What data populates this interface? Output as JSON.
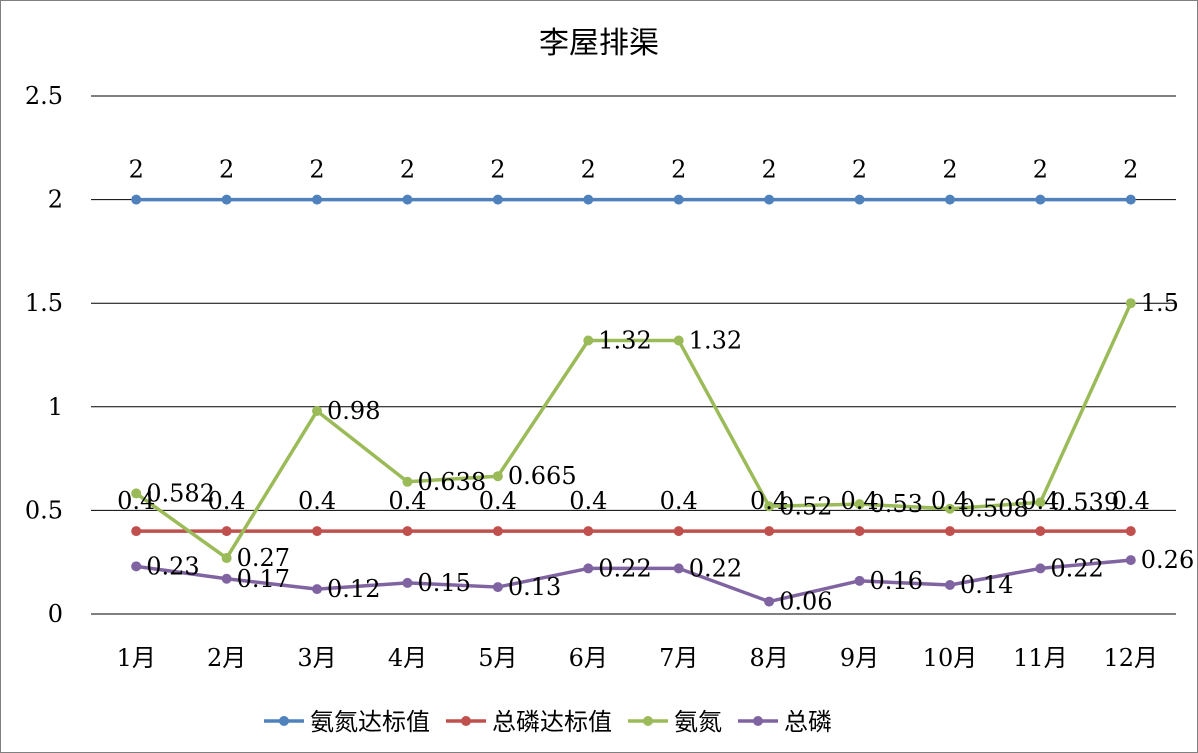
{
  "chart_data": {
    "type": "line",
    "title": "李屋排渠",
    "categories": [
      "1月",
      "2月",
      "3月",
      "4月",
      "5月",
      "6月",
      "7月",
      "8月",
      "9月",
      "10月",
      "11月",
      "12月"
    ],
    "y_ticks": [
      "0",
      "0.5",
      "1",
      "1.5",
      "2",
      "2.5"
    ],
    "ylim": [
      0,
      2.5
    ],
    "grid": true,
    "legend_position": "bottom",
    "series": [
      {
        "name": "氨氮达标值",
        "color": "#4F81BD",
        "values": [
          2,
          2,
          2,
          2,
          2,
          2,
          2,
          2,
          2,
          2,
          2,
          2
        ],
        "labels": [
          "2",
          "2",
          "2",
          "2",
          "2",
          "2",
          "2",
          "2",
          "2",
          "2",
          "2",
          "2"
        ]
      },
      {
        "name": "总磷达标值",
        "color": "#C0504D",
        "values": [
          0.4,
          0.4,
          0.4,
          0.4,
          0.4,
          0.4,
          0.4,
          0.4,
          0.4,
          0.4,
          0.4,
          0.4
        ],
        "labels": [
          "0.4",
          "0.4",
          "0.4",
          "0.4",
          "0.4",
          "0.4",
          "0.4",
          "0.4",
          "0.4",
          "0.4",
          "0.4",
          "0.4"
        ]
      },
      {
        "name": "氨氮",
        "color": "#9BBB59",
        "values": [
          0.582,
          0.27,
          0.98,
          0.638,
          0.665,
          1.32,
          1.32,
          0.52,
          0.53,
          0.508,
          0.539,
          1.5
        ],
        "labels": [
          "0.582",
          "0.27",
          "0.98",
          "0.638",
          "0.665",
          "1.32",
          "1.32",
          "0.52",
          "0.53",
          "0.508",
          "0.539",
          "1.5"
        ]
      },
      {
        "name": "总磷",
        "color": "#8064A2",
        "values": [
          0.23,
          0.17,
          0.12,
          0.15,
          0.13,
          0.22,
          0.22,
          0.06,
          0.16,
          0.14,
          0.22,
          0.26
        ],
        "labels": [
          "0.23",
          "0.17",
          "0.12",
          "0.15",
          "0.13",
          "0.22",
          "0.22",
          "0.06",
          "0.16",
          "0.14",
          "0.22",
          "0.26"
        ]
      }
    ]
  }
}
